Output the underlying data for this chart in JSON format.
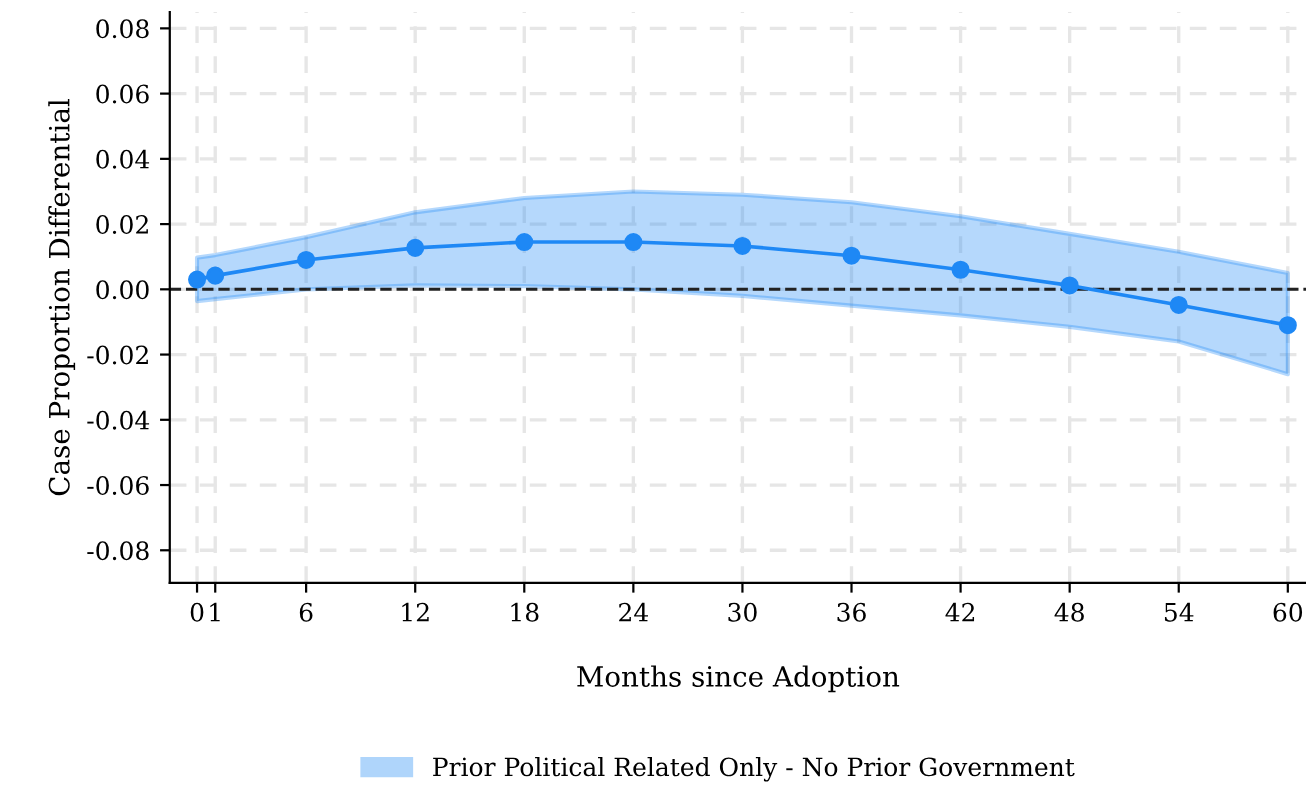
{
  "chart_data": {
    "type": "line",
    "xlabel": "Months since Adoption",
    "ylabel": "Case Proportion Differential",
    "x": [
      0,
      1,
      6,
      12,
      18,
      24,
      30,
      36,
      42,
      48,
      54,
      60
    ],
    "series": [
      {
        "name": "Prior Political Related Only - No Prior Government",
        "color": "#1e88f5",
        "values": [
          0.003,
          0.0042,
          0.009,
          0.0127,
          0.0145,
          0.0145,
          0.0133,
          0.0103,
          0.006,
          0.0012,
          -0.0048,
          -0.011
        ],
        "upper": [
          0.0097,
          0.0105,
          0.016,
          0.0236,
          0.028,
          0.03,
          0.029,
          0.0267,
          0.0224,
          0.017,
          0.0115,
          0.005
        ],
        "lower": [
          -0.0036,
          -0.003,
          0.0,
          0.0012,
          0.001,
          0.0,
          -0.002,
          -0.005,
          -0.008,
          -0.0115,
          -0.016,
          -0.026
        ]
      }
    ],
    "xlim": [
      -1.5,
      61
    ],
    "ylim": [
      -0.09,
      0.085
    ],
    "xticks": [
      0,
      1,
      6,
      12,
      18,
      24,
      30,
      36,
      42,
      48,
      54,
      60
    ],
    "yticks": [
      {
        "value": -0.08,
        "label": "-0.08"
      },
      {
        "value": -0.06,
        "label": "-0.06"
      },
      {
        "value": -0.04,
        "label": "-0.04"
      },
      {
        "value": -0.02,
        "label": "-0.02"
      },
      {
        "value": 0,
        "label": "0.00"
      },
      {
        "value": 0.02,
        "label": "0.02"
      },
      {
        "value": 0.04,
        "label": "0.04"
      },
      {
        "value": 0.06,
        "label": "0.06"
      },
      {
        "value": 0.08,
        "label": "0.08"
      }
    ],
    "ref_lines": [
      {
        "axis": "y",
        "value": 0,
        "color": "#222222",
        "line_style": "dashed"
      }
    ],
    "grid": true,
    "legend": "bottom",
    "marker": "circle",
    "line_style": "solid"
  }
}
